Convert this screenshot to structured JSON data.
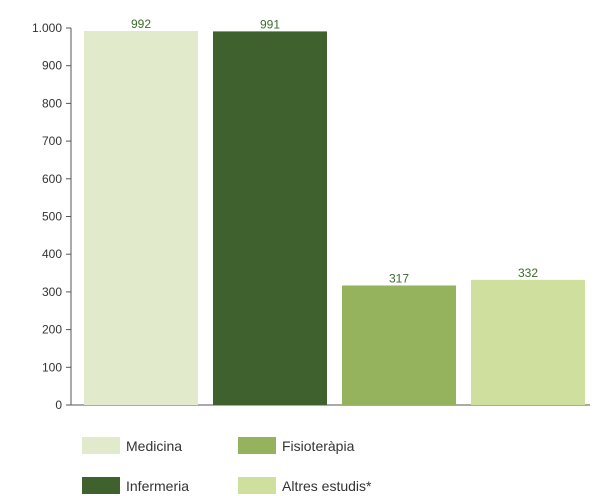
{
  "chart_data": {
    "type": "bar",
    "categories": [
      "Medicina",
      "Infermeria",
      "Fisioteràpia",
      "Altres estudis*"
    ],
    "values": [
      992,
      991,
      317,
      332
    ],
    "value_labels": [
      "992",
      "991",
      "317",
      "332"
    ],
    "colors": [
      "#e1ebcb",
      "#3e612d",
      "#94b35c",
      "#cfe09e"
    ],
    "ylim": [
      0,
      1000
    ],
    "yticks": [
      0,
      100,
      200,
      300,
      400,
      500,
      600,
      700,
      800,
      900,
      1000
    ],
    "ytick_labels": [
      "0",
      "100",
      "200",
      "300",
      "400",
      "500",
      "600",
      "700",
      "800",
      "900",
      "1.000"
    ],
    "grid": false,
    "legend_position": "bottom",
    "title": "",
    "xlabel": "",
    "ylabel": ""
  },
  "legend": {
    "items": [
      {
        "label": "Medicina",
        "color": "#e1ebcb"
      },
      {
        "label": "Fisioteràpia",
        "color": "#94b35c"
      },
      {
        "label": "Infermeria",
        "color": "#3e612d"
      },
      {
        "label": "Altres estudis*",
        "color": "#cfe09e"
      }
    ]
  }
}
